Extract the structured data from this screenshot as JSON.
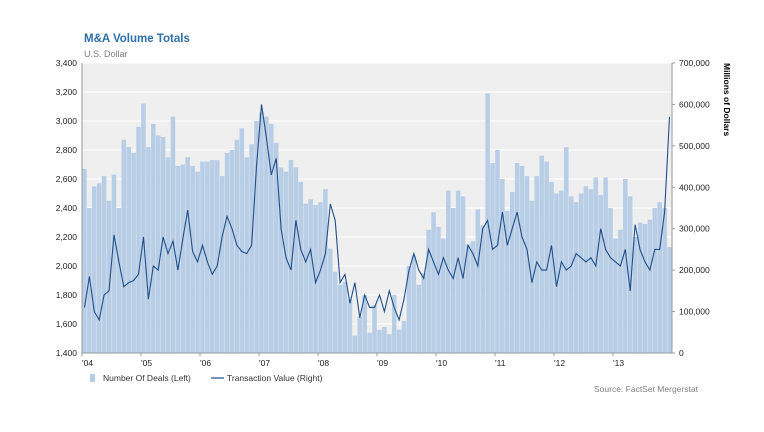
{
  "title": "M&A Volume Totals",
  "subtitle": "U.S. Dollar",
  "source": "Source: FactSet Mergerstat",
  "colors": {
    "bars": "#b8cde6",
    "line": "#1f4f8a",
    "plot_bg": "#efefef",
    "title": "#2f6fa8",
    "grid": "#ffffff"
  },
  "chart_data": {
    "type": "bar",
    "combo": "bar+line (dual axis)",
    "title": "M&A Volume Totals",
    "subtitle": "U.S. Dollar",
    "y_left_ticks": [
      "1,400",
      "1,600",
      "1,800",
      "2,000",
      "2,200",
      "2,400",
      "2,600",
      "2,800",
      "3,000",
      "3,200",
      "3,400"
    ],
    "y_right_ticks": [
      "0",
      "100,000",
      "200,000",
      "300,000",
      "400,000",
      "500,000",
      "600,000",
      "700,000"
    ],
    "y_right_label": "Millions of Dollars",
    "ylim_left": [
      1400,
      3400
    ],
    "ylim_right": [
      0,
      700000
    ],
    "x_ticks": [
      "'04",
      "'05",
      "'06",
      "'07",
      "'08",
      "'09",
      "'10",
      "'11",
      "'12",
      "'13"
    ],
    "x_range": [
      "2004-01",
      "2013-12"
    ],
    "grid": true,
    "legend": "bottom-left",
    "series": [
      {
        "name": "Number Of Deals (Left)",
        "type": "bar",
        "axis": "left",
        "x": [
          "2004-01",
          "2004-02",
          "2004-03",
          "2004-04",
          "2004-05",
          "2004-06",
          "2004-07",
          "2004-08",
          "2004-09",
          "2004-10",
          "2004-11",
          "2004-12",
          "2005-01",
          "2005-02",
          "2005-03",
          "2005-04",
          "2005-05",
          "2005-06",
          "2005-07",
          "2005-08",
          "2005-09",
          "2005-10",
          "2005-11",
          "2005-12",
          "2006-01",
          "2006-02",
          "2006-03",
          "2006-04",
          "2006-05",
          "2006-06",
          "2006-07",
          "2006-08",
          "2006-09",
          "2006-10",
          "2006-11",
          "2006-12",
          "2007-01",
          "2007-02",
          "2007-03",
          "2007-04",
          "2007-05",
          "2007-06",
          "2007-07",
          "2007-08",
          "2007-09",
          "2007-10",
          "2007-11",
          "2007-12",
          "2008-01",
          "2008-02",
          "2008-03",
          "2008-04",
          "2008-05",
          "2008-06",
          "2008-07",
          "2008-08",
          "2008-09",
          "2008-10",
          "2008-11",
          "2008-12",
          "2009-01",
          "2009-02",
          "2009-03",
          "2009-04",
          "2009-05",
          "2009-06",
          "2009-07",
          "2009-08",
          "2009-09",
          "2009-10",
          "2009-11",
          "2009-12",
          "2010-01",
          "2010-02",
          "2010-03",
          "2010-04",
          "2010-05",
          "2010-06",
          "2010-07",
          "2010-08",
          "2010-09",
          "2010-10",
          "2010-11",
          "2010-12",
          "2011-01",
          "2011-02",
          "2011-03",
          "2011-04",
          "2011-05",
          "2011-06",
          "2011-07",
          "2011-08",
          "2011-09",
          "2011-10",
          "2011-11",
          "2011-12",
          "2012-01",
          "2012-02",
          "2012-03",
          "2012-04",
          "2012-05",
          "2012-06",
          "2012-07",
          "2012-08",
          "2012-09",
          "2012-10",
          "2012-11",
          "2012-12",
          "2013-01",
          "2013-02",
          "2013-03",
          "2013-04",
          "2013-05",
          "2013-06",
          "2013-07",
          "2013-08",
          "2013-09",
          "2013-10",
          "2013-11",
          "2013-12"
        ],
        "values": [
          2670,
          2400,
          2550,
          2570,
          2620,
          2450,
          2630,
          2400,
          2870,
          2820,
          2780,
          2960,
          3120,
          2820,
          2980,
          2900,
          2890,
          2750,
          3030,
          2690,
          2700,
          2750,
          2690,
          2650,
          2720,
          2720,
          2730,
          2730,
          2620,
          2780,
          2800,
          2870,
          2950,
          2750,
          2840,
          3000,
          3060,
          3030,
          2980,
          2850,
          2680,
          2650,
          2730,
          2680,
          2580,
          2430,
          2460,
          2420,
          2440,
          2530,
          2120,
          1960,
          1870,
          1890,
          1770,
          1520,
          1650,
          1800,
          1540,
          1730,
          1560,
          1580,
          1530,
          1800,
          1560,
          1620,
          2000,
          2070,
          1870,
          1950,
          2250,
          2370,
          2270,
          2190,
          2520,
          2400,
          2520,
          2480,
          2150,
          2170,
          2390,
          2280,
          3190,
          2710,
          2800,
          2600,
          2380,
          2510,
          2710,
          2690,
          2620,
          2450,
          2620,
          2760,
          2720,
          2580,
          2500,
          2520,
          2820,
          2480,
          2440,
          2500,
          2550,
          2530,
          2610,
          2490,
          2610,
          2400,
          2190,
          2250,
          2600,
          2480,
          2200,
          2300,
          2290,
          2320,
          2400,
          2440,
          2400,
          2130
        ]
      },
      {
        "name": "Transaction Value (Right)",
        "type": "line",
        "axis": "right",
        "x": [
          "2004-01",
          "2004-02",
          "2004-03",
          "2004-04",
          "2004-05",
          "2004-06",
          "2004-07",
          "2004-08",
          "2004-09",
          "2004-10",
          "2004-11",
          "2004-12",
          "2005-01",
          "2005-02",
          "2005-03",
          "2005-04",
          "2005-05",
          "2005-06",
          "2005-07",
          "2005-08",
          "2005-09",
          "2005-10",
          "2005-11",
          "2005-12",
          "2006-01",
          "2006-02",
          "2006-03",
          "2006-04",
          "2006-05",
          "2006-06",
          "2006-07",
          "2006-08",
          "2006-09",
          "2006-10",
          "2006-11",
          "2006-12",
          "2007-01",
          "2007-02",
          "2007-03",
          "2007-04",
          "2007-05",
          "2007-06",
          "2007-07",
          "2007-08",
          "2007-09",
          "2007-10",
          "2007-11",
          "2007-12",
          "2008-01",
          "2008-02",
          "2008-03",
          "2008-04",
          "2008-05",
          "2008-06",
          "2008-07",
          "2008-08",
          "2008-09",
          "2008-10",
          "2008-11",
          "2008-12",
          "2009-01",
          "2009-02",
          "2009-03",
          "2009-04",
          "2009-05",
          "2009-06",
          "2009-07",
          "2009-08",
          "2009-09",
          "2009-10",
          "2009-11",
          "2009-12",
          "2010-01",
          "2010-02",
          "2010-03",
          "2010-04",
          "2010-05",
          "2010-06",
          "2010-07",
          "2010-08",
          "2010-09",
          "2010-10",
          "2010-11",
          "2010-12",
          "2011-01",
          "2011-02",
          "2011-03",
          "2011-04",
          "2011-05",
          "2011-06",
          "2011-07",
          "2011-08",
          "2011-09",
          "2011-10",
          "2011-11",
          "2011-12",
          "2012-01",
          "2012-02",
          "2012-03",
          "2012-04",
          "2012-05",
          "2012-06",
          "2012-07",
          "2012-08",
          "2012-09",
          "2012-10",
          "2012-11",
          "2012-12",
          "2013-01",
          "2013-02",
          "2013-03",
          "2013-04",
          "2013-05",
          "2013-06",
          "2013-07",
          "2013-08",
          "2013-09",
          "2013-10",
          "2013-11",
          "2013-12"
        ],
        "values": [
          110000,
          185000,
          100000,
          80000,
          140000,
          150000,
          285000,
          220000,
          160000,
          170000,
          175000,
          190000,
          280000,
          130000,
          210000,
          200000,
          280000,
          240000,
          270000,
          200000,
          275000,
          345000,
          245000,
          220000,
          260000,
          220000,
          190000,
          210000,
          280000,
          330000,
          300000,
          260000,
          245000,
          240000,
          260000,
          450000,
          600000,
          520000,
          430000,
          470000,
          300000,
          230000,
          200000,
          320000,
          250000,
          220000,
          250000,
          170000,
          200000,
          240000,
          360000,
          320000,
          170000,
          190000,
          120000,
          170000,
          85000,
          140000,
          110000,
          110000,
          140000,
          100000,
          150000,
          110000,
          80000,
          130000,
          200000,
          240000,
          200000,
          180000,
          250000,
          220000,
          190000,
          230000,
          200000,
          180000,
          230000,
          180000,
          260000,
          240000,
          210000,
          300000,
          320000,
          250000,
          260000,
          340000,
          260000,
          300000,
          340000,
          280000,
          250000,
          170000,
          220000,
          200000,
          200000,
          260000,
          160000,
          220000,
          200000,
          210000,
          240000,
          230000,
          220000,
          230000,
          210000,
          300000,
          250000,
          230000,
          220000,
          210000,
          250000,
          150000,
          310000,
          250000,
          220000,
          200000,
          250000,
          250000,
          340000,
          570000
        ]
      }
    ]
  }
}
